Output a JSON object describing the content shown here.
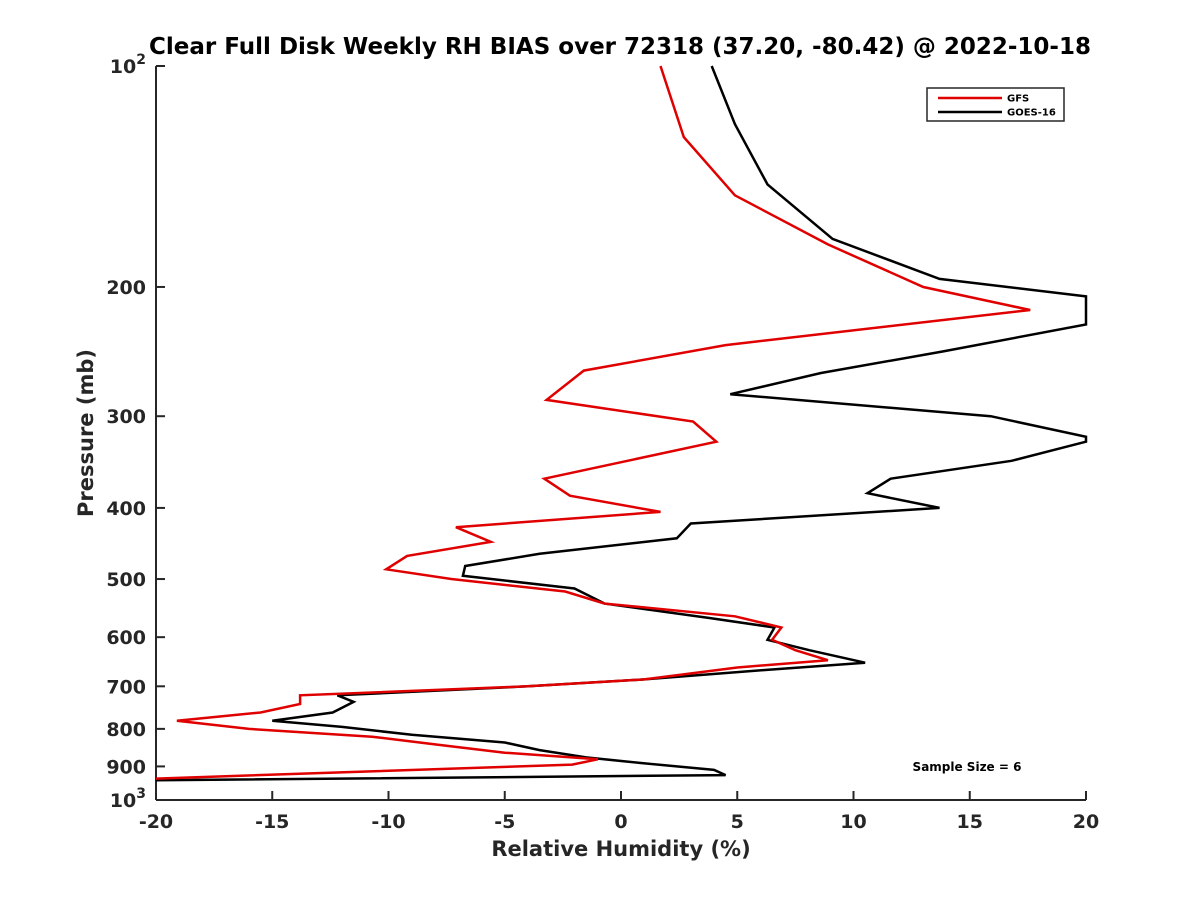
{
  "chart_data": {
    "type": "line",
    "title": "Clear Full Disk Weekly RH BIAS over 72318 (37.20, -80.42) @ 2022-10-18",
    "xlabel": "Relative Humidity (%)",
    "ylabel": "Pressure (mb)",
    "xlim": [
      -20,
      20
    ],
    "ylim": [
      100,
      1000
    ],
    "y_scale": "log",
    "y_reversed": true,
    "x_ticks": [
      -20,
      -15,
      -10,
      -5,
      0,
      5,
      10,
      15,
      20
    ],
    "x_tick_labels": [
      "-20",
      "-15",
      "-10",
      "-5",
      "0",
      "5",
      "10",
      "15",
      "20"
    ],
    "y_ticks": [
      100,
      200,
      300,
      400,
      500,
      600,
      700,
      800,
      900,
      1000
    ],
    "y_tick_labels": [
      {
        "base": "10",
        "exp": "2"
      },
      {
        "base": "200",
        "exp": ""
      },
      {
        "base": "300",
        "exp": ""
      },
      {
        "base": "400",
        "exp": ""
      },
      {
        "base": "500",
        "exp": ""
      },
      {
        "base": "600",
        "exp": ""
      },
      {
        "base": "700",
        "exp": ""
      },
      {
        "base": "800",
        "exp": ""
      },
      {
        "base": "900",
        "exp": ""
      },
      {
        "base": "10",
        "exp": "3"
      }
    ],
    "grid": false,
    "legend_position": "top-right",
    "annotation": "Sample Size = 6",
    "series": [
      {
        "name": "GFS",
        "color": "#e00000",
        "x": [
          1.7,
          2.7,
          4.9,
          8.9,
          13.0,
          17.6,
          4.5,
          -1.6,
          -3.2,
          3.1,
          4.1,
          -3.3,
          -2.2,
          1.7,
          -7.1,
          -5.6,
          -9.2,
          -10.1,
          -7.3,
          -2.4,
          -0.7,
          4.9,
          6.9,
          6.5,
          7.5,
          8.9,
          5.0,
          1.0,
          -4.0,
          -13.8,
          -13.8,
          -15.5,
          -19.1,
          -16.0,
          -10.7,
          -8.0,
          -5.0,
          -1.0,
          -2.1,
          -20.0
        ],
        "y": [
          100,
          125,
          150,
          175,
          200,
          215,
          240,
          260,
          285,
          305,
          325,
          365,
          385,
          405,
          425,
          445,
          465,
          485,
          500,
          520,
          540,
          562,
          582,
          605,
          625,
          645,
          660,
          685,
          700,
          720,
          740,
          760,
          780,
          800,
          820,
          840,
          862,
          880,
          895,
          935
        ]
      },
      {
        "name": "GOES-16",
        "color": "#000000",
        "x": [
          3.9,
          4.9,
          6.3,
          9.1,
          13.7,
          20.0,
          20.0,
          13.8,
          8.6,
          4.7,
          15.9,
          20.0,
          20.0,
          16.8,
          11.6,
          10.6,
          13.7,
          3.0,
          2.4,
          -3.5,
          -6.7,
          -6.8,
          -2.0,
          -0.7,
          3.8,
          6.6,
          6.3,
          8.1,
          10.5,
          6.2,
          1.0,
          -4.0,
          -12.2,
          -11.5,
          -12.4,
          -15.0,
          -12.0,
          -9.0,
          -5.0,
          -3.5,
          -1.5,
          0.8,
          4.0,
          4.5,
          -20.0
        ],
        "y": [
          100,
          120,
          145,
          172,
          195,
          206,
          225,
          245,
          262,
          280,
          300,
          320,
          325,
          345,
          365,
          382,
          400,
          420,
          440,
          462,
          480,
          495,
          515,
          540,
          565,
          582,
          605,
          625,
          650,
          665,
          685,
          700,
          720,
          735,
          760,
          780,
          795,
          815,
          835,
          855,
          875,
          890,
          910,
          925,
          940
        ]
      }
    ]
  }
}
